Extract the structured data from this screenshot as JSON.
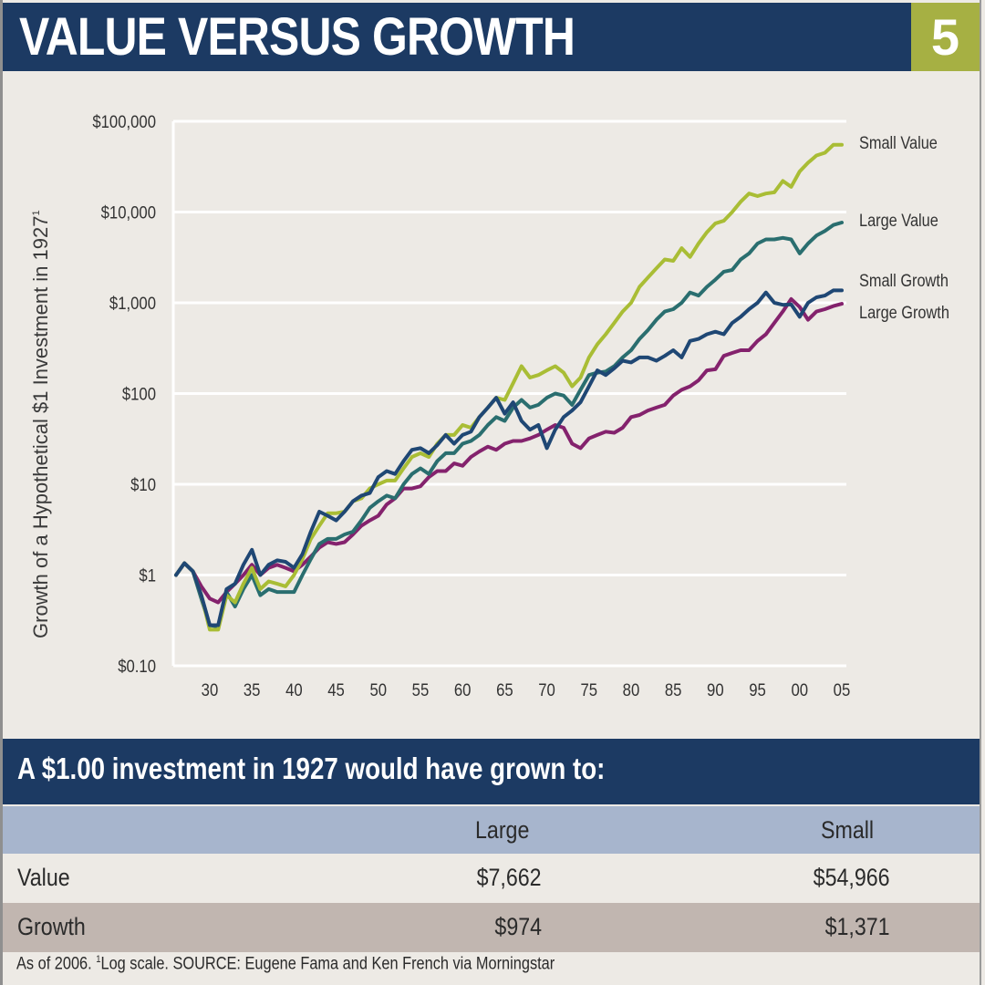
{
  "header": {
    "title": "VALUE VERSUS GROWTH",
    "badge": "5"
  },
  "colors": {
    "header_bg": "#1c3a63",
    "badge_bg": "#a6b043",
    "small_value": "#a9bd35",
    "large_value": "#2a6e6f",
    "small_growth": "#1f4774",
    "large_growth": "#84226d"
  },
  "chart_data": {
    "type": "line",
    "title": "",
    "ylabel": "Growth of a Hypothetical $1 Investment in 1927",
    "ylabel_footnote": "1",
    "xlabel": "",
    "yscale": "log",
    "ylim": [
      0.1,
      100000
    ],
    "xlim": [
      1926,
      2006
    ],
    "yticks": [
      0.1,
      1,
      10,
      100,
      1000,
      10000,
      100000
    ],
    "ytick_labels": [
      "$0.10",
      "$1",
      "$10",
      "$100",
      "$1,000",
      "$10,000",
      "$100,000"
    ],
    "xticks": [
      1930,
      1935,
      1940,
      1945,
      1950,
      1955,
      1960,
      1965,
      1970,
      1975,
      1980,
      1985,
      1990,
      1995,
      2000,
      2005
    ],
    "xtick_labels": [
      "30",
      "35",
      "40",
      "45",
      "50",
      "55",
      "60",
      "65",
      "70",
      "75",
      "80",
      "85",
      "90",
      "95",
      "00",
      "05"
    ],
    "grid": true,
    "legend_placement": "right, labels at line ends",
    "x": [
      1926,
      1927,
      1928,
      1929,
      1930,
      1931,
      1932,
      1933,
      1934,
      1935,
      1936,
      1937,
      1938,
      1939,
      1940,
      1941,
      1942,
      1943,
      1944,
      1945,
      1946,
      1947,
      1948,
      1949,
      1950,
      1951,
      1952,
      1953,
      1954,
      1955,
      1956,
      1957,
      1958,
      1959,
      1960,
      1961,
      1962,
      1963,
      1964,
      1965,
      1966,
      1967,
      1968,
      1969,
      1970,
      1971,
      1972,
      1973,
      1974,
      1975,
      1976,
      1977,
      1978,
      1979,
      1980,
      1981,
      1982,
      1983,
      1984,
      1985,
      1986,
      1987,
      1988,
      1989,
      1990,
      1991,
      1992,
      1993,
      1994,
      1995,
      1996,
      1997,
      1998,
      1999,
      2000,
      2001,
      2002,
      2003,
      2004,
      2005,
      2006
    ],
    "series": [
      {
        "name": "Small Value",
        "values": [
          1,
          1.35,
          1.1,
          0.6,
          0.25,
          0.25,
          0.6,
          0.5,
          0.8,
          1.2,
          0.7,
          0.85,
          0.8,
          0.75,
          1.0,
          1.5,
          2.5,
          3.5,
          4.8,
          4.8,
          5,
          6.5,
          7,
          9,
          10,
          11,
          11,
          15,
          20,
          22,
          20,
          28,
          35,
          35,
          45,
          42,
          55,
          70,
          90,
          85,
          130,
          200,
          150,
          160,
          180,
          200,
          170,
          120,
          150,
          250,
          350,
          450,
          600,
          800,
          1000,
          1500,
          1900,
          2400,
          3000,
          2900,
          4000,
          3200,
          4500,
          6000,
          7500,
          8000,
          10000,
          13000,
          16000,
          15000,
          16000,
          16500,
          22000,
          19000,
          28000,
          35000,
          42000,
          45000,
          55000,
          55000,
          55000
        ]
      },
      {
        "name": "Large Value",
        "values": [
          1,
          1.35,
          1.1,
          0.55,
          0.28,
          0.27,
          0.65,
          0.45,
          0.7,
          1.0,
          0.6,
          0.7,
          0.65,
          0.65,
          0.65,
          1.0,
          1.5,
          2.2,
          2.5,
          2.5,
          2.8,
          3,
          4,
          5.5,
          6.5,
          7.5,
          7,
          10,
          13,
          15,
          13,
          18,
          22,
          22,
          28,
          30,
          35,
          45,
          55,
          50,
          70,
          85,
          70,
          75,
          90,
          100,
          95,
          75,
          110,
          160,
          170,
          175,
          200,
          250,
          300,
          400,
          500,
          650,
          800,
          850,
          1000,
          1300,
          1200,
          1500,
          1800,
          2200,
          2300,
          3000,
          3500,
          4500,
          5000,
          5000,
          5200,
          5000,
          3500,
          4500,
          5500,
          6200,
          7200,
          7662,
          7662
        ]
      },
      {
        "name": "Small Growth",
        "values": [
          1,
          1.35,
          1.1,
          0.6,
          0.28,
          0.28,
          0.7,
          0.8,
          1.3,
          1.9,
          1.0,
          1.3,
          1.45,
          1.4,
          1.2,
          1.7,
          3.0,
          5.0,
          4.5,
          4.0,
          5.0,
          6.5,
          7.5,
          8,
          12,
          14,
          13,
          18,
          24,
          25,
          22,
          27,
          35,
          28,
          35,
          38,
          55,
          70,
          90,
          60,
          80,
          50,
          40,
          45,
          25,
          40,
          55,
          65,
          80,
          120,
          180,
          160,
          190,
          230,
          220,
          250,
          250,
          230,
          260,
          300,
          250,
          380,
          400,
          450,
          480,
          450,
          600,
          700,
          850,
          1000,
          1300,
          1000,
          950,
          960,
          700,
          1000,
          1150,
          1200,
          1371,
          1371,
          1371
        ]
      },
      {
        "name": "Large Growth",
        "values": [
          1,
          1.35,
          1.1,
          0.75,
          0.55,
          0.5,
          0.65,
          0.8,
          1.0,
          1.3,
          1.0,
          1.2,
          1.3,
          1.2,
          1.1,
          1.3,
          1.6,
          2.0,
          2.3,
          2.2,
          2.3,
          2.8,
          3.5,
          4,
          4.5,
          6,
          7,
          9,
          9,
          9.5,
          12,
          14,
          14,
          17,
          16,
          20,
          23,
          26,
          24,
          28,
          30,
          30,
          32,
          35,
          40,
          45,
          42,
          28,
          25,
          32,
          35,
          38,
          37,
          42,
          55,
          58,
          65,
          70,
          75,
          95,
          110,
          120,
          140,
          180,
          185,
          260,
          280,
          300,
          300,
          380,
          450,
          600,
          800,
          1100,
          900,
          650,
          800,
          850,
          920,
          974,
          974
        ]
      }
    ]
  },
  "summary": {
    "title": "A $1.00 investment in 1927 would have grown to:",
    "columns": [
      "",
      "Large",
      "Small"
    ],
    "rows": [
      {
        "label": "Value",
        "large": "$7,662",
        "small": "$54,966"
      },
      {
        "label": "Growth",
        "large": "$974",
        "small": "$1,371"
      }
    ]
  },
  "footnote": {
    "pre": "As of 2006. ",
    "sup": "1",
    "post": "Log scale. SOURCE: Eugene Fama and Ken French via Morningstar"
  }
}
